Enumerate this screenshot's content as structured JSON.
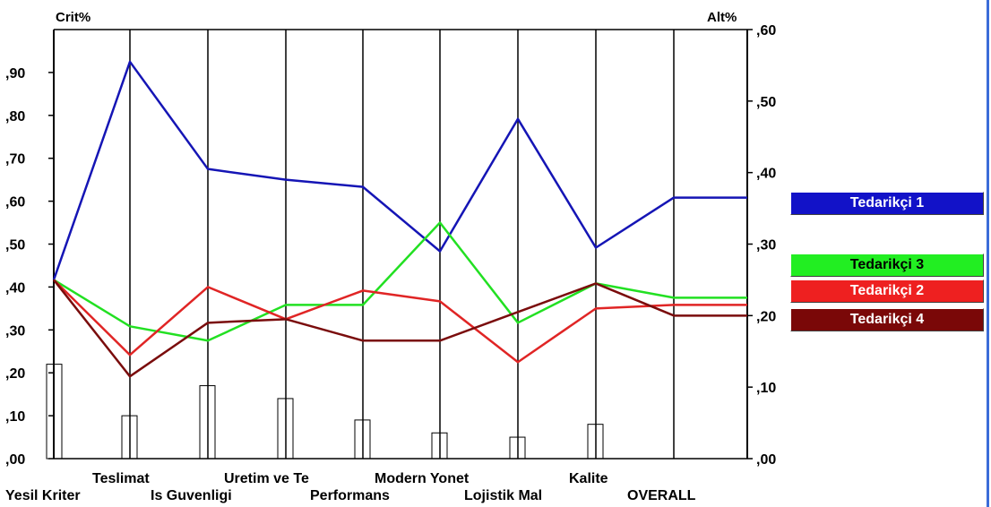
{
  "chart_data": {
    "type": "line",
    "title": "",
    "ylabel_left": "Crit%",
    "ylabel_right": "Alt%",
    "left_axis": {
      "ylim": [
        0,
        1.0
      ],
      "ticks": [
        ",00",
        ",10",
        ",20",
        ",30",
        ",40",
        ",50",
        ",60",
        ",70",
        ",80",
        ",90"
      ]
    },
    "right_axis": {
      "ylim": [
        0,
        0.6
      ],
      "ticks": [
        ",00",
        ",10",
        ",20",
        ",30",
        ",40",
        ",50",
        ",60"
      ]
    },
    "categories": [
      "Yesil Kriter",
      "Teslimat",
      "Is Guvenligi",
      "Uretim ve Te",
      "Performans",
      "Modern Yonet",
      "Lojistik Mal",
      "Kalite",
      "OVERALL"
    ],
    "criterion_weights": [
      0.22,
      0.1,
      0.17,
      0.14,
      0.09,
      0.06,
      0.05,
      0.08
    ],
    "series": [
      {
        "name": "Tedarikçi 1",
        "color": "#1515b5",
        "values": [
          0.25,
          0.555,
          0.405,
          0.39,
          0.38,
          0.29,
          0.475,
          0.295,
          0.365
        ]
      },
      {
        "name": "Tedarikçi 3",
        "color": "#22e022",
        "values": [
          0.25,
          0.185,
          0.165,
          0.215,
          0.215,
          0.33,
          0.19,
          0.245,
          0.225
        ]
      },
      {
        "name": "Tedarikçi 2",
        "color": "#e02525",
        "values": [
          0.25,
          0.145,
          0.24,
          0.195,
          0.235,
          0.22,
          0.135,
          0.21,
          0.215
        ]
      },
      {
        "name": "Tedarikçi 4",
        "color": "#7a0c0c",
        "values": [
          0.25,
          0.115,
          0.19,
          0.195,
          0.165,
          0.165,
          0.205,
          0.245,
          0.2
        ]
      }
    ],
    "legend": {
      "placement": "right",
      "items": [
        {
          "label": "Tedarikçi 1",
          "bg": "#1212c8",
          "text_color": "#ffffff"
        },
        {
          "label": "Tedarikçi 3",
          "bg": "#22ee22",
          "text_color": "#000000"
        },
        {
          "label": "Tedarikçi 2",
          "bg": "#ee2020",
          "text_color": "#ffffff"
        },
        {
          "label": "Tedarikçi 4",
          "bg": "#7a0808",
          "text_color": "#ffffff"
        }
      ]
    },
    "grid": false
  }
}
